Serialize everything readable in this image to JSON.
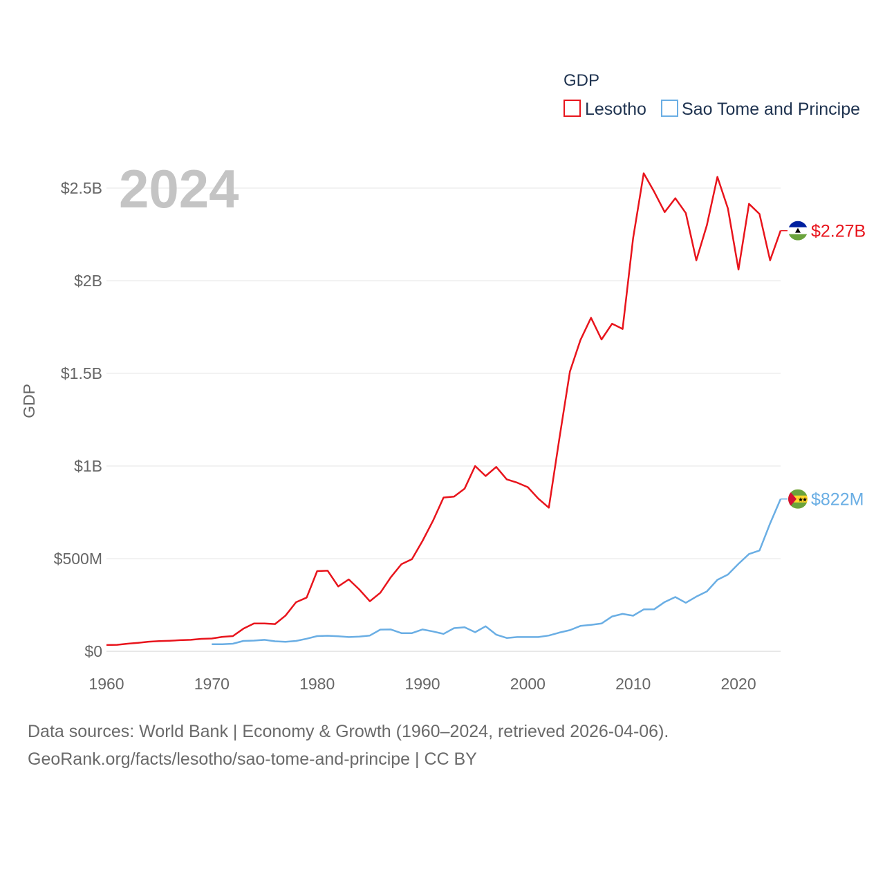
{
  "chart_data": {
    "type": "line",
    "legend_title": "GDP",
    "ylabel": "GDP",
    "year_label": "2024",
    "xlim": [
      1960,
      2024
    ],
    "ylim": [
      0,
      2500000000
    ],
    "x_ticks": [
      1960,
      1970,
      1980,
      1990,
      2000,
      2010,
      2020
    ],
    "x_tick_labels": [
      "1960",
      "1970",
      "1980",
      "1990",
      "2000",
      "2010",
      "2020"
    ],
    "y_ticks": [
      0,
      500000000,
      1000000000,
      1500000000,
      2000000000,
      2500000000
    ],
    "y_tick_labels": [
      "$0",
      "$500M",
      "$1B",
      "$1.5B",
      "$2B",
      "$2.5B"
    ],
    "grid": true,
    "series": [
      {
        "name": "Lesotho",
        "color": "#e8141c",
        "end_label": "$2.27B",
        "flag_icon": "lesotho-flag-icon",
        "x": [
          1960,
          1961,
          1962,
          1963,
          1964,
          1965,
          1966,
          1967,
          1968,
          1969,
          1970,
          1971,
          1972,
          1973,
          1974,
          1975,
          1976,
          1977,
          1978,
          1979,
          1980,
          1981,
          1982,
          1983,
          1984,
          1985,
          1986,
          1987,
          1988,
          1989,
          1990,
          1991,
          1992,
          1993,
          1994,
          1995,
          1996,
          1997,
          1998,
          1999,
          2000,
          2001,
          2002,
          2003,
          2004,
          2005,
          2006,
          2007,
          2008,
          2009,
          2010,
          2011,
          2012,
          2013,
          2014,
          2015,
          2016,
          2017,
          2018,
          2019,
          2020,
          2021,
          2022,
          2023,
          2024
        ],
        "values": [
          34000000,
          35000000,
          41000000,
          46000000,
          52000000,
          55000000,
          57000000,
          60000000,
          62000000,
          67000000,
          69000000,
          78000000,
          82000000,
          122000000,
          150000000,
          150000000,
          147000000,
          193000000,
          265000000,
          290000000,
          433000000,
          435000000,
          350000000,
          388000000,
          334000000,
          270000000,
          316000000,
          400000000,
          470000000,
          497000000,
          595000000,
          705000000,
          830000000,
          835000000,
          878000000,
          1000000000,
          946000000,
          995000000,
          928000000,
          910000000,
          886000000,
          824000000,
          775000000,
          1150000000,
          1510000000,
          1680000000,
          1800000000,
          1683000000,
          1768000000,
          1740000000,
          2230000000,
          2580000000,
          2480000000,
          2370000000,
          2445000000,
          2365000000,
          2110000000,
          2300000000,
          2560000000,
          2390000000,
          2060000000,
          2415000000,
          2360000000,
          2110000000,
          2270000000
        ]
      },
      {
        "name": "Sao Tome and Principe",
        "color": "#6aaee4",
        "end_label": "$822M",
        "flag_icon": "sao-tome-flag-icon",
        "x": [
          1970,
          1971,
          1972,
          1973,
          1974,
          1975,
          1976,
          1977,
          1978,
          1979,
          1980,
          1981,
          1982,
          1983,
          1984,
          1985,
          1986,
          1987,
          1988,
          1989,
          1990,
          1991,
          1992,
          1993,
          1994,
          1995,
          1996,
          1997,
          1998,
          1999,
          2000,
          2001,
          2002,
          2003,
          2004,
          2005,
          2006,
          2007,
          2008,
          2009,
          2010,
          2011,
          2012,
          2013,
          2014,
          2015,
          2016,
          2017,
          2018,
          2019,
          2020,
          2021,
          2022,
          2023,
          2024
        ],
        "values": [
          38000000,
          38000000,
          41000000,
          56000000,
          58000000,
          62000000,
          54000000,
          51000000,
          56000000,
          68000000,
          82000000,
          84000000,
          81000000,
          77000000,
          79000000,
          85000000,
          117000000,
          118000000,
          98000000,
          98000000,
          118000000,
          107000000,
          94000000,
          125000000,
          130000000,
          103000000,
          135000000,
          90000000,
          72000000,
          77000000,
          77000000,
          77000000,
          85000000,
          101000000,
          114000000,
          137000000,
          143000000,
          150000000,
          188000000,
          202000000,
          192000000,
          226000000,
          227000000,
          266000000,
          293000000,
          262000000,
          295000000,
          323000000,
          386000000,
          414000000,
          472000000,
          525000000,
          544000000,
          690000000,
          822000000
        ]
      }
    ]
  },
  "footer": {
    "line1": "Data sources: World Bank | Economy & Growth (1960–2024, retrieved 2026-04-06).",
    "line2": "GeoRank.org/facts/lesotho/sao-tome-and-principe | CC BY"
  }
}
